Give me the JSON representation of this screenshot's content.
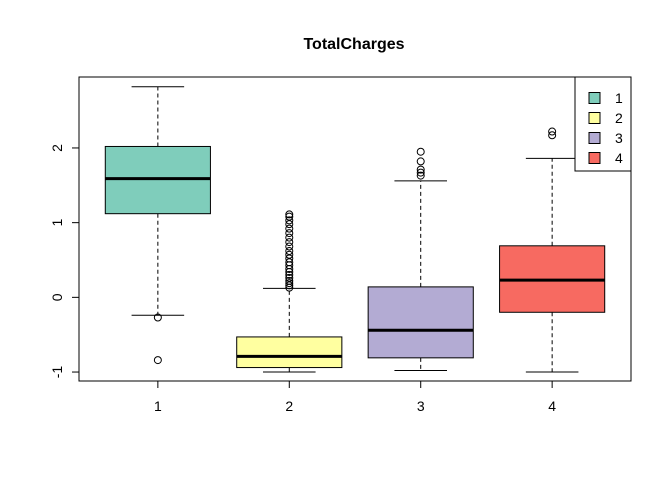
{
  "chart_data": {
    "type": "boxplot",
    "title": "TotalCharges",
    "xlabel": "",
    "ylabel": "",
    "ylim": [
      -1.12,
      2.95
    ],
    "yticks": [
      -1,
      0,
      1,
      2
    ],
    "ytick_labels": [
      "-1",
      "0",
      "1",
      "2"
    ],
    "categories": [
      "1",
      "2",
      "3",
      "4"
    ],
    "grid": false,
    "legend": {
      "position": "top-right",
      "entries": [
        "1",
        "2",
        "3",
        "4"
      ]
    },
    "boxes": [
      {
        "category": "1",
        "color": "#7FCDBB",
        "whisker_low": -0.24,
        "q1": 1.12,
        "median": 1.59,
        "q3": 2.02,
        "whisker_high": 2.82,
        "outliers": [
          -0.27,
          -0.84
        ]
      },
      {
        "category": "2",
        "color": "#FFFFA0",
        "whisker_low": -1.0,
        "q1": -0.94,
        "median": -0.79,
        "q3": -0.53,
        "whisker_high": 0.12,
        "outliers": [
          0.13,
          0.16,
          0.19,
          0.22,
          0.26,
          0.3,
          0.34,
          0.38,
          0.43,
          0.47,
          0.52,
          0.57,
          0.62,
          0.68,
          0.74,
          0.8,
          0.86,
          0.92,
          0.98,
          1.03,
          1.08,
          1.11
        ]
      },
      {
        "category": "3",
        "color": "#B3ABD3",
        "whisker_low": -0.98,
        "q1": -0.81,
        "median": -0.44,
        "q3": 0.14,
        "whisker_high": 1.56,
        "outliers": [
          1.63,
          1.67,
          1.71,
          1.82,
          1.95
        ]
      },
      {
        "category": "4",
        "color": "#F76A61",
        "whisker_low": -1.0,
        "q1": -0.2,
        "median": 0.23,
        "q3": 0.69,
        "whisker_high": 1.86,
        "outliers": [
          2.17,
          2.22
        ]
      }
    ]
  }
}
